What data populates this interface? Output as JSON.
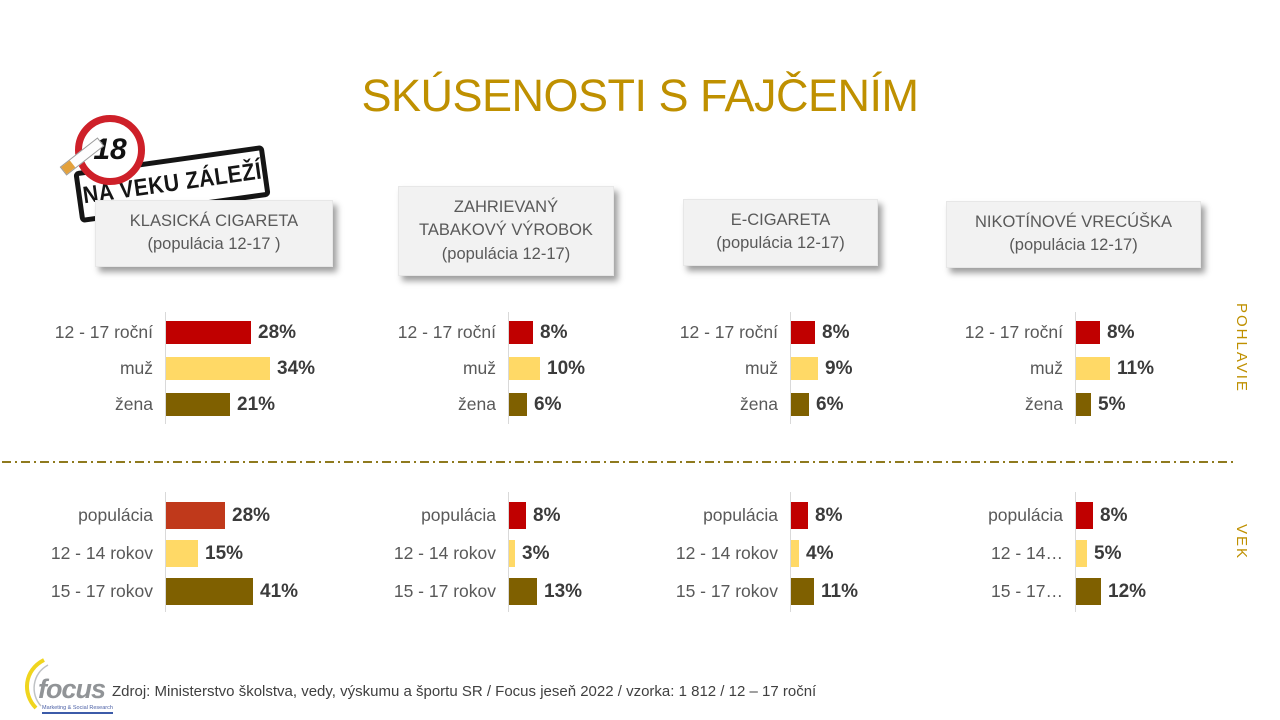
{
  "slide": {
    "title": "SKÚSENOSTI S FAJČENÍM",
    "age_badge": {
      "number": "18",
      "stamp": "NA VEKU ZÁLEŽÍ"
    }
  },
  "sections": {
    "top": {
      "side_label": "POHLAVIE"
    },
    "bottom": {
      "side_label": "VEK"
    }
  },
  "footer": {
    "source": "Zdroj: Ministerstvo školstva, vedy, výskumu a športu SR / Focus jeseň 2022  / vzorka: 1 812  / 12 – 17 roční",
    "focus_logo": "focus",
    "focus_tagline": "Marketing & Social Research"
  },
  "chart_data": {
    "type": "bar",
    "orientation": "horizontal",
    "title": "SKÚSENOSTI S FAJČENÍM",
    "unit": "%",
    "legend_position": "none",
    "grid": false,
    "palette": {
      "dark_red": "#C00000",
      "orange_red": "#C0391B",
      "yellow": "#FFD966",
      "olive": "#7F6000"
    },
    "section_names": {
      "pohlavie": "POHLAVIE",
      "vek": "VEK"
    },
    "groups": [
      {
        "header_lines": [
          "KLASICKÁ CIGARETA",
          "(populácia 12-17 )"
        ],
        "pohlavie": {
          "labels": [
            "12 - 17 roční",
            "muž",
            "žena"
          ],
          "values": [
            28,
            34,
            21
          ],
          "colors": [
            "#C00000",
            "#FFD966",
            "#7F6000"
          ]
        },
        "vek": {
          "labels": [
            "populácia",
            "12 - 14 rokov",
            "15 - 17 rokov"
          ],
          "values": [
            28,
            15,
            41
          ],
          "colors": [
            "#C0391B",
            "#FFD966",
            "#7F6000"
          ]
        }
      },
      {
        "header_lines": [
          "ZAHRIEVANÝ",
          "TABAKOVÝ VÝROBOK",
          "(populácia 12-17)"
        ],
        "pohlavie": {
          "labels": [
            "12 - 17 roční",
            "muž",
            "žena"
          ],
          "values": [
            8,
            10,
            6
          ],
          "colors": [
            "#C00000",
            "#FFD966",
            "#7F6000"
          ]
        },
        "vek": {
          "labels": [
            "populácia",
            "12 - 14 rokov",
            "15 - 17 rokov"
          ],
          "values": [
            8,
            3,
            13
          ],
          "colors": [
            "#C00000",
            "#FFD966",
            "#7F6000"
          ]
        }
      },
      {
        "header_lines": [
          "E-CIGARETA",
          "(populácia 12-17)"
        ],
        "pohlavie": {
          "labels": [
            "12 - 17 roční",
            "muž",
            "žena"
          ],
          "values": [
            8,
            9,
            6
          ],
          "colors": [
            "#C00000",
            "#FFD966",
            "#7F6000"
          ]
        },
        "vek": {
          "labels": [
            "populácia",
            "12 - 14 rokov",
            "15 - 17 rokov"
          ],
          "values": [
            8,
            4,
            11
          ],
          "colors": [
            "#C00000",
            "#FFD966",
            "#7F6000"
          ]
        }
      },
      {
        "header_lines": [
          "NIKOTÍNOVÉ VRECÚŠKA",
          "(populácia 12-17)"
        ],
        "pohlavie": {
          "labels": [
            "12 - 17 roční",
            "muž",
            "žena"
          ],
          "values": [
            8,
            11,
            5
          ],
          "colors": [
            "#C00000",
            "#FFD966",
            "#7F6000"
          ]
        },
        "vek": {
          "labels": [
            "populácia",
            "12 - 14…",
            "15 - 17…"
          ],
          "values": [
            8,
            5,
            12
          ],
          "colors": [
            "#C00000",
            "#FFD966",
            "#7F6000"
          ]
        }
      }
    ]
  }
}
